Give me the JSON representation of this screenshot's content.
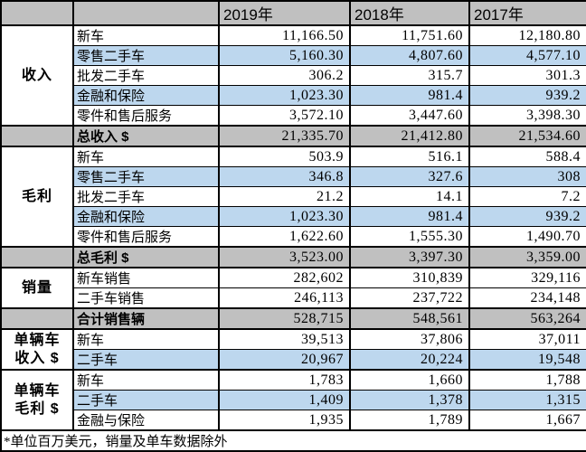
{
  "chart_data": {
    "type": "table",
    "years": [
      "2019年",
      "2018年",
      "2017年"
    ],
    "sections": [
      {
        "id": "revenue",
        "group": "收入",
        "rows": [
          {
            "label": "新车",
            "values": [
              "11,166.50",
              "11,751.60",
              "12,180.80"
            ],
            "highlight": false
          },
          {
            "label": "零售二手车",
            "values": [
              "5,160.30",
              "4,807.60",
              "4,577.10"
            ],
            "highlight": true
          },
          {
            "label": "批发二手车",
            "values": [
              "306.2",
              "315.7",
              "301.3"
            ],
            "highlight": false
          },
          {
            "label": "金融和保险",
            "values": [
              "1,023.30",
              "981.4",
              "939.2"
            ],
            "highlight": true
          },
          {
            "label": "零件和售后服务",
            "values": [
              "3,572.10",
              "3,447.60",
              "3,398.30"
            ],
            "highlight": false
          }
        ],
        "total": {
          "label": "总收入 $",
          "values": [
            "21,335.70",
            "21,412.80",
            "21,534.60"
          ]
        }
      },
      {
        "id": "gross-profit",
        "group": "毛利",
        "rows": [
          {
            "label": "新车",
            "values": [
              "503.9",
              "516.1",
              "588.4"
            ],
            "highlight": false
          },
          {
            "label": "零售二手车",
            "values": [
              "346.8",
              "327.6",
              "308"
            ],
            "highlight": true
          },
          {
            "label": "批发二手车",
            "values": [
              "21.2",
              "14.1",
              "7.2"
            ],
            "highlight": false
          },
          {
            "label": "金融和保险",
            "values": [
              "1,023.30",
              "981.4",
              "939.2"
            ],
            "highlight": true
          },
          {
            "label": "零件和售后服务",
            "values": [
              "1,622.60",
              "1,555.30",
              "1,490.70"
            ],
            "highlight": false
          }
        ],
        "total": {
          "label": "总毛利 $",
          "values": [
            "3,523.00",
            "3,397.30",
            "3,359.00"
          ]
        }
      },
      {
        "id": "sales-volume",
        "group": "销量",
        "rows": [
          {
            "label": "新车销售",
            "values": [
              "282,602",
              "310,839",
              "329,116"
            ],
            "highlight": false
          },
          {
            "label": "二手车销售",
            "values": [
              "246,113",
              "237,722",
              "234,148"
            ],
            "highlight": false
          }
        ],
        "total": {
          "label": "合计销售辆",
          "values": [
            "528,715",
            "548,561",
            "563,264"
          ]
        }
      },
      {
        "id": "per-vehicle-revenue",
        "group": "单辆车\n收入 $",
        "rows": [
          {
            "label": "新车",
            "values": [
              "39,513",
              "37,806",
              "37,011"
            ],
            "highlight": false
          },
          {
            "label": "二手车",
            "values": [
              "20,967",
              "20,224",
              "19,548"
            ],
            "highlight": true
          }
        ],
        "total": null
      },
      {
        "id": "per-vehicle-gross-profit",
        "group": "单辆车\n毛利 $",
        "rows": [
          {
            "label": "新车",
            "values": [
              "1,783",
              "1,660",
              "1,788"
            ],
            "highlight": false
          },
          {
            "label": "二手车",
            "values": [
              "1,409",
              "1,378",
              "1,315"
            ],
            "highlight": true
          },
          {
            "label": "金融与保险",
            "values": [
              "1,935",
              "1,789",
              "1,667"
            ],
            "highlight": false
          }
        ],
        "total": null
      }
    ],
    "footnote": "*单位百万美元，销量及单车数据除外"
  },
  "colors": {
    "header_bg": "#c0c0c0",
    "total_bg": "#c0c0c0",
    "highlight_bg": "#bdd7ee",
    "border": "#000000",
    "text": "#000000"
  }
}
